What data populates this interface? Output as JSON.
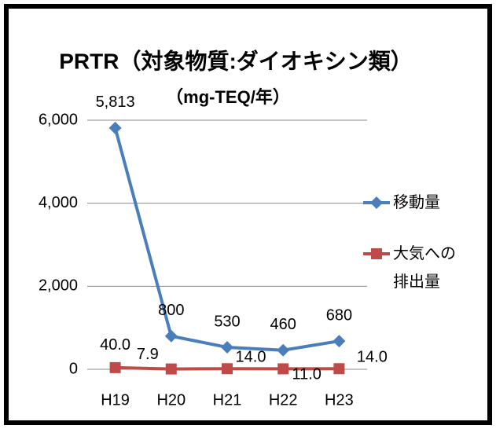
{
  "chart_data": {
    "type": "line",
    "title": "PRTR（対象物質:ダイオキシン類）",
    "subtitle": "（mg-TEQ/年）",
    "categories": [
      "H19",
      "H20",
      "H21",
      "H22",
      "H23"
    ],
    "series": [
      {
        "name": "移動量",
        "color": "#4a7ebb",
        "marker": "diamond",
        "values": [
          5813,
          800,
          530,
          460,
          680
        ],
        "value_labels": [
          "5,813",
          "800",
          "530",
          "460",
          "680"
        ]
      },
      {
        "name": "大気への排出量",
        "color": "#be4b48",
        "marker": "square",
        "values": [
          40.0,
          7.9,
          14.0,
          11.0,
          14.0
        ],
        "value_labels": [
          "40.0",
          "7.9",
          "14.0",
          "11.0",
          "14.0"
        ]
      }
    ],
    "ylim": [
      0,
      6000
    ],
    "yticks": [
      0,
      {
        "value": 2000,
        "label": "2,000"
      },
      {
        "value": 4000,
        "label": "4,000"
      },
      {
        "value": 6000,
        "label": "6,000"
      }
    ],
    "grid": true,
    "legend": "right"
  }
}
